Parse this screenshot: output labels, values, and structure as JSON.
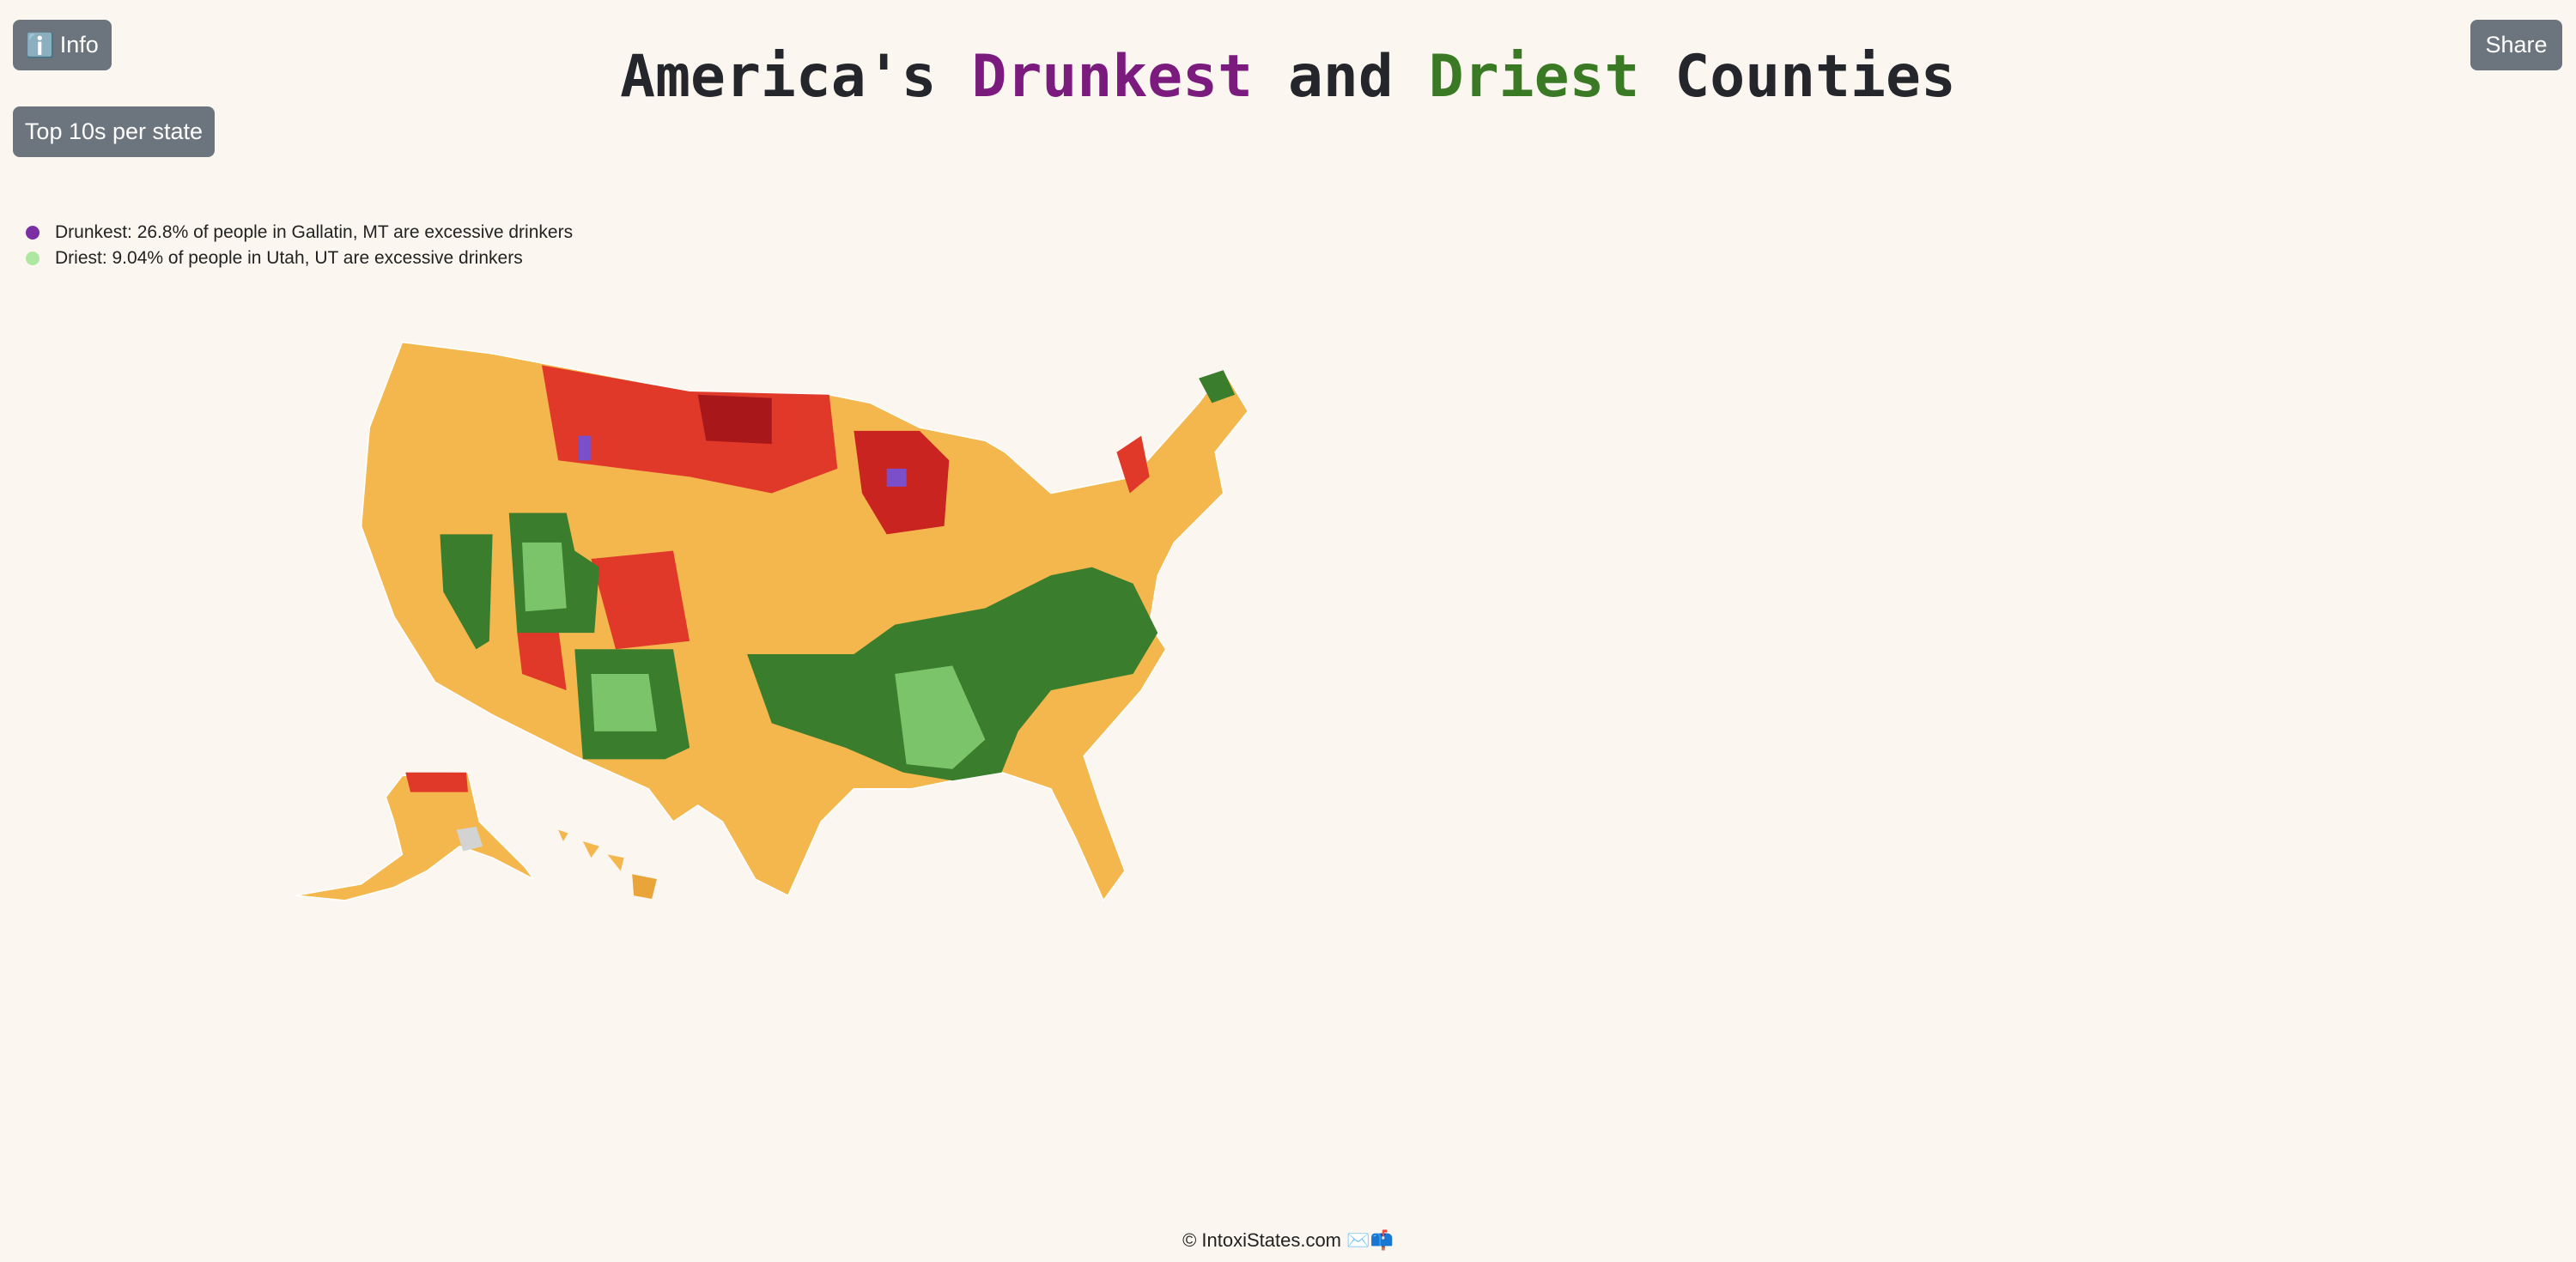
{
  "buttons": {
    "info": {
      "icon": "ℹ️",
      "label": "Info"
    },
    "top10": "Top 10s per state",
    "share": "Share"
  },
  "title": {
    "parts": [
      "America's ",
      "Drunkest",
      " and ",
      "Driest",
      " Counties"
    ]
  },
  "legend": [
    {
      "label": "Drunkest: 26.8% of people in Gallatin, MT are excessive drinkers"
    },
    {
      "label": "Driest: 9.04% of people in Utah, UT are excessive drinkers"
    }
  ],
  "footer": {
    "text": "© IntoxiStates.com",
    "icons": "✉️📫"
  }
}
